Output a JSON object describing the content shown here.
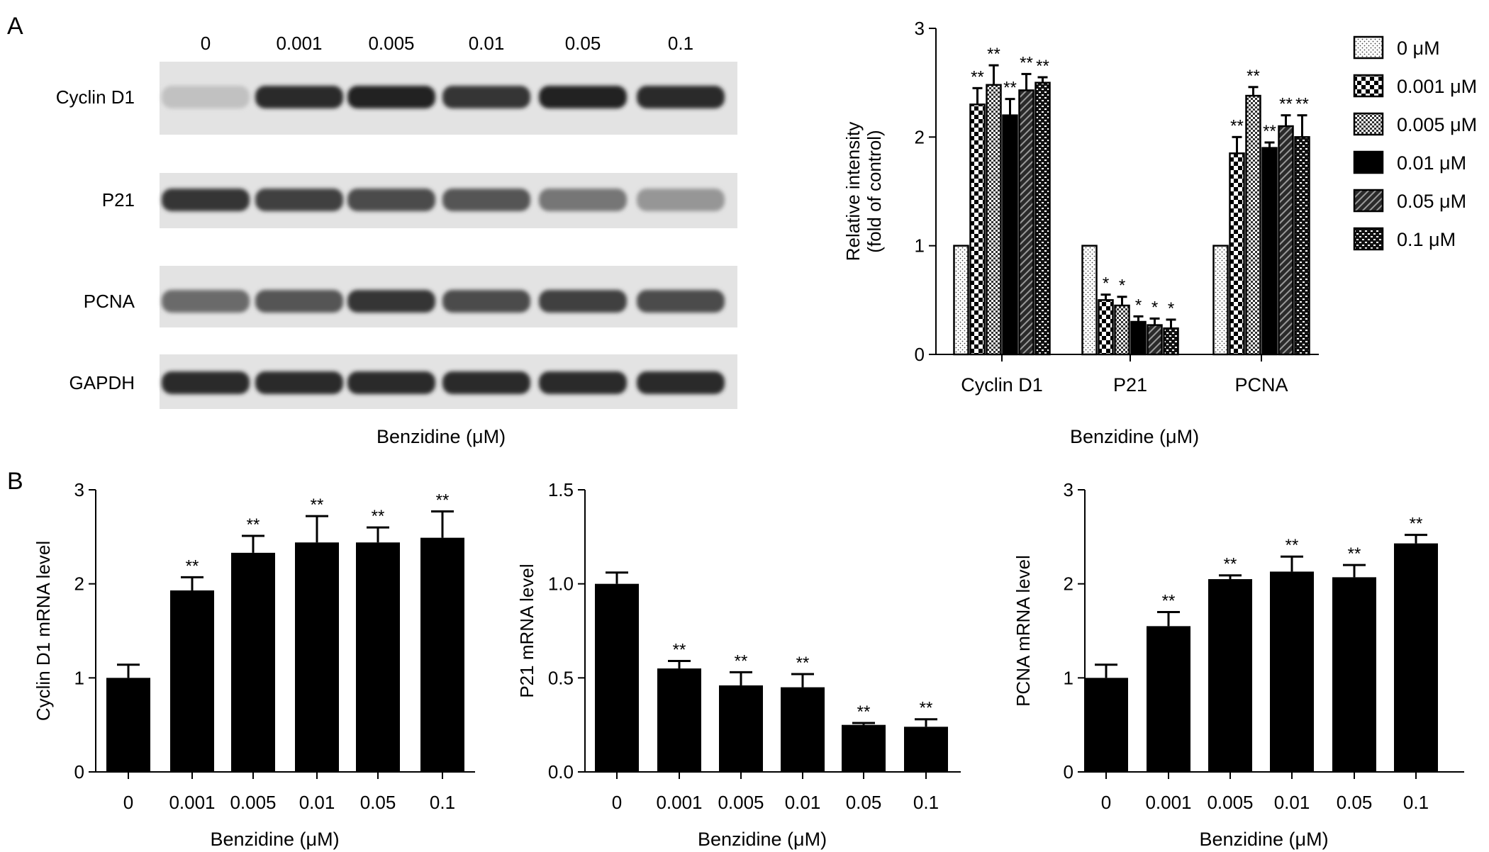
{
  "panel_labels": {
    "a": "A",
    "b": "B"
  },
  "blot": {
    "lane_labels": [
      "0",
      "0.001",
      "0.005",
      "0.01",
      "0.05",
      "0.1"
    ],
    "rows": [
      {
        "label": "Cyclin D1",
        "intensity": [
          0.15,
          0.85,
          0.9,
          0.8,
          0.9,
          0.85
        ]
      },
      {
        "label": "P21",
        "intensity": [
          0.8,
          0.75,
          0.7,
          0.65,
          0.5,
          0.35
        ]
      },
      {
        "label": "PCNA",
        "intensity": [
          0.55,
          0.65,
          0.8,
          0.7,
          0.75,
          0.7
        ]
      },
      {
        "label": "GAPDH",
        "intensity": [
          0.85,
          0.85,
          0.85,
          0.85,
          0.85,
          0.85
        ]
      }
    ],
    "xlabel": "Benzidine (μM)"
  },
  "legend_items": [
    {
      "label": "0 μM",
      "pattern": "pat-dots-fine"
    },
    {
      "label": "0.001 μM",
      "pattern": "pat-checker-large"
    },
    {
      "label": "0.005 μM",
      "pattern": "pat-checker-small"
    },
    {
      "label": "0.01 μM",
      "pattern": "solid-black"
    },
    {
      "label": "0.05 μM",
      "pattern": "pat-diagonal"
    },
    {
      "label": "0.1 μM",
      "pattern": "pat-dots-coarse"
    }
  ],
  "chart_data": [
    {
      "id": "A-right",
      "type": "bar",
      "categories": [
        "Cyclin D1",
        "P21",
        "PCNA"
      ],
      "series": [
        {
          "name": "0 μM",
          "values": [
            1.0,
            1.0,
            1.0
          ],
          "errors": [
            0,
            0,
            0
          ],
          "sig": [
            "",
            "",
            ""
          ]
        },
        {
          "name": "0.001 μM",
          "values": [
            2.3,
            0.5,
            1.85
          ],
          "errors": [
            0.15,
            0.05,
            0.15
          ],
          "sig": [
            "**",
            "*",
            "**"
          ]
        },
        {
          "name": "0.005 μM",
          "values": [
            2.48,
            0.45,
            2.38
          ],
          "errors": [
            0.18,
            0.08,
            0.08
          ],
          "sig": [
            "**",
            "*",
            "**"
          ]
        },
        {
          "name": "0.01 μM",
          "values": [
            2.2,
            0.3,
            1.9
          ],
          "errors": [
            0.15,
            0.05,
            0.05
          ],
          "sig": [
            "**",
            "*",
            "**"
          ]
        },
        {
          "name": "0.05 μM",
          "values": [
            2.43,
            0.27,
            2.1
          ],
          "errors": [
            0.15,
            0.06,
            0.1
          ],
          "sig": [
            "**",
            "*",
            "**"
          ]
        },
        {
          "name": "0.1 μM",
          "values": [
            2.5,
            0.24,
            2.0
          ],
          "errors": [
            0.05,
            0.08,
            0.2
          ],
          "sig": [
            "**",
            "*",
            "**"
          ]
        }
      ],
      "xlabel": "Benzidine (μM)",
      "ylabel": [
        "Relative intensity",
        "(fold of control)"
      ],
      "ylim": [
        0,
        3
      ],
      "yticks": [
        "0",
        "1",
        "2",
        "3"
      ],
      "legend": "right"
    },
    {
      "id": "B-cyclin",
      "type": "bar",
      "categories": [
        "0",
        "0.001",
        "0.005",
        "0.01",
        "0.05",
        "0.1"
      ],
      "values": [
        1.0,
        1.93,
        2.33,
        2.44,
        2.44,
        2.49
      ],
      "errors": [
        0.14,
        0.14,
        0.18,
        0.28,
        0.16,
        0.28
      ],
      "sig": [
        "",
        "**",
        "**",
        "**",
        "**",
        "**"
      ],
      "xlabel": "Benzidine (μM)",
      "ylabel": "Cyclin D1 mRNA level",
      "ylim": [
        0,
        3
      ],
      "yticks": [
        "0",
        "1",
        "2",
        "3"
      ]
    },
    {
      "id": "B-p21",
      "type": "bar",
      "categories": [
        "0",
        "0.001",
        "0.005",
        "0.01",
        "0.05",
        "0.1"
      ],
      "values": [
        1.0,
        0.55,
        0.46,
        0.45,
        0.25,
        0.24
      ],
      "errors": [
        0.06,
        0.04,
        0.07,
        0.07,
        0.01,
        0.04
      ],
      "sig": [
        "",
        "**",
        "**",
        "**",
        "**",
        "**"
      ],
      "xlabel": "Benzidine (μM)",
      "ylabel": "P21 mRNA level",
      "ylim": [
        0,
        1.5
      ],
      "yticks": [
        "0.0",
        "0.5",
        "1.0",
        "1.5"
      ]
    },
    {
      "id": "B-pcna",
      "type": "bar",
      "categories": [
        "0",
        "0.001",
        "0.005",
        "0.01",
        "0.05",
        "0.1"
      ],
      "values": [
        1.0,
        1.55,
        2.05,
        2.13,
        2.07,
        2.43
      ],
      "errors": [
        0.14,
        0.15,
        0.04,
        0.16,
        0.13,
        0.09
      ],
      "sig": [
        "",
        "**",
        "**",
        "**",
        "**",
        "**"
      ],
      "xlabel": "Benzidine (μM)",
      "ylabel": "PCNA mRNA level",
      "ylim": [
        0,
        3
      ],
      "yticks": [
        "0",
        "1",
        "2",
        "3"
      ]
    }
  ]
}
